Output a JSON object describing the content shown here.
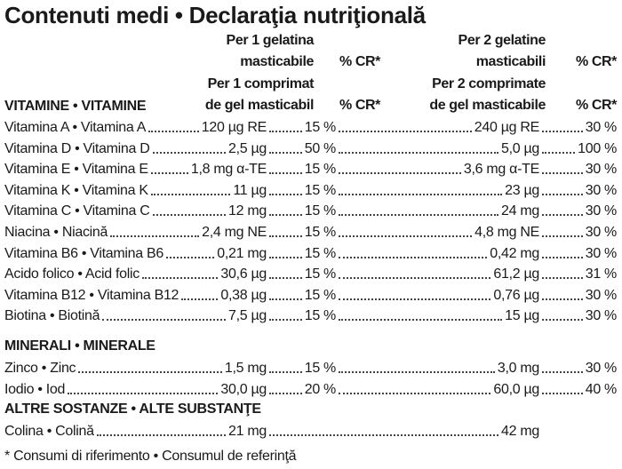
{
  "title": "Contenuti medi • Declaraţia nutriţională",
  "header": {
    "col1_it_line1": "Per 1 gelatina",
    "col1_it_line2": "masticabile",
    "col1_ro_line1": "Per 1 comprimat",
    "col1_ro_line2": "de gel masticabil",
    "col2_it_line1": "Per 2 gelatine",
    "col2_it_line2": "masticabili",
    "col2_ro_line1": "Per 2 comprimate",
    "col2_ro_line2": "de gel masticabile",
    "pct_label": "% CR*"
  },
  "sections": {
    "vitamins": "VITAMINE • VITAMINE",
    "minerals": "MINERALI • MINERALE",
    "other": "ALTRE SOSTANZE • ALTE SUBSTANŢE"
  },
  "vitamins": [
    {
      "name": "Vitamina A • Vitamina A",
      "v1": "120 µg RE",
      "p1": "15 %",
      "v2": "240 µg RE",
      "p2": "30 %"
    },
    {
      "name": "Vitamina D • Vitamina D",
      "v1": "2,5 µg",
      "p1": "50 %",
      "v2": "5,0 µg",
      "p2": "100 %"
    },
    {
      "name": "Vitamina E • Vitamina E",
      "v1": "1,8 mg α-TE",
      "p1": "15 %",
      "v2": "3,6 mg α-TE",
      "p2": "30 %"
    },
    {
      "name": "Vitamina K • Vitamina K",
      "v1": "11 µg",
      "p1": "15 %",
      "v2": "23 µg",
      "p2": "30 %"
    },
    {
      "name": "Vitamina C • Vitamina C",
      "v1": "12 mg",
      "p1": "15 %",
      "v2": "24 mg",
      "p2": "30 %"
    },
    {
      "name": "Niacina • Niacină",
      "v1": "2,4 mg NE",
      "p1": "15 %",
      "v2": "4,8 mg NE",
      "p2": "30 %"
    },
    {
      "name": "Vitamina B6 • Vitamina B6",
      "v1": "0,21 mg",
      "p1": "15 %",
      "v2": "0,42 mg",
      "p2": "30 %"
    },
    {
      "name": "Acido folico • Acid folic",
      "v1": "30,6 µg",
      "p1": "15 %",
      "v2": "61,2 µg",
      "p2": "31 %"
    },
    {
      "name": "Vitamina B12 • Vitamina B12",
      "v1": "0,38 µg",
      "p1": "15 %",
      "v2": "0,76 µg",
      "p2": "30 %"
    },
    {
      "name": "Biotina • Biotină",
      "v1": "7,5 µg",
      "p1": "15 %",
      "v2": "15 µg",
      "p2": "30 %"
    }
  ],
  "minerals": [
    {
      "name": "Zinco • Zinc",
      "v1": "1,5 mg",
      "p1": "15 %",
      "v2": "3,0 mg",
      "p2": "30 %"
    },
    {
      "name": "Iodio • Iod",
      "v1": "30,0 µg",
      "p1": "20 %",
      "v2": "60,0 µg",
      "p2": "40 %"
    }
  ],
  "other": [
    {
      "name": "Colina • Colină",
      "v1": "21 mg",
      "v2": "42 mg"
    }
  ],
  "footnote": "* Consumi di riferimento • Consumul de referinţă"
}
